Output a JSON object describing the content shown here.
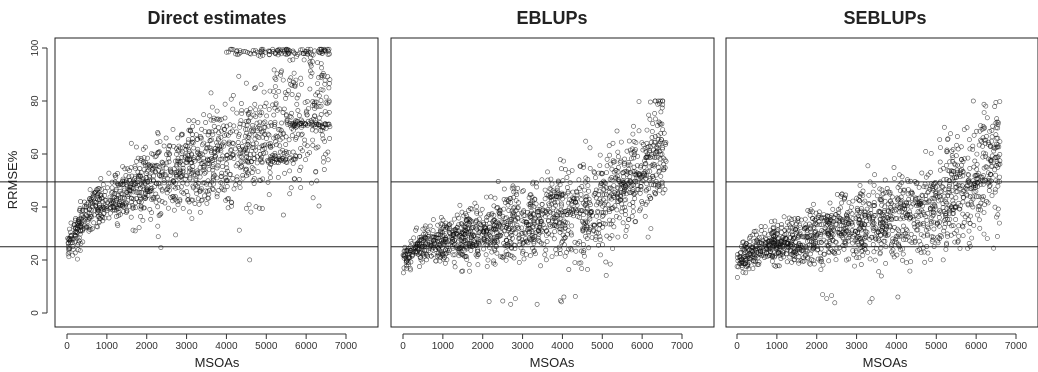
{
  "chart_data": [
    {
      "type": "scatter",
      "title": "Direct estimates",
      "xlabel": "MSOAs",
      "ylabel": "RRMSE%",
      "xlim": [
        0,
        7000
      ],
      "ylim": [
        0,
        100
      ],
      "xticks": [
        "0",
        "1000",
        "2000",
        "3000",
        "4000",
        "5000",
        "6000",
        "7000"
      ],
      "yticks": [
        "0",
        "20",
        "40",
        "60",
        "80",
        "100"
      ],
      "reference_lines": [
        25,
        49.5
      ],
      "n_points": 6600,
      "trend": [
        [
          0,
          25
        ],
        [
          500,
          38
        ],
        [
          1500,
          45
        ],
        [
          3000,
          55
        ],
        [
          4500,
          62
        ],
        [
          5500,
          72
        ],
        [
          6600,
          80
        ]
      ],
      "plateaus": [
        {
          "from": 5000,
          "to": 6000,
          "value": 58
        },
        {
          "from": 5500,
          "to": 6600,
          "value": 71
        },
        {
          "from": 4000,
          "to": 6600,
          "value": 98.5
        }
      ],
      "grid": false
    },
    {
      "type": "scatter",
      "title": "EBLUPs",
      "xlabel": "MSOAs",
      "ylabel": "",
      "xlim": [
        0,
        7000
      ],
      "ylim": [
        0,
        100
      ],
      "xticks": [
        "0",
        "1000",
        "2000",
        "3000",
        "4000",
        "5000",
        "6000",
        "7000"
      ],
      "yticks": [],
      "reference_lines": [
        25,
        49.5
      ],
      "n_points": 6600,
      "trend": [
        [
          0,
          20
        ],
        [
          500,
          26
        ],
        [
          2000,
          30
        ],
        [
          3500,
          35
        ],
        [
          5000,
          42
        ],
        [
          5800,
          52
        ],
        [
          6600,
          62
        ]
      ],
      "plateaus": [
        {
          "from": 5800,
          "to": 6100,
          "value": 52
        },
        {
          "from": 6300,
          "to": 6600,
          "value": 61
        }
      ],
      "grid": false
    },
    {
      "type": "scatter",
      "title": "SEBLUPs",
      "xlabel": "MSOAs",
      "ylabel": "",
      "xlim": [
        0,
        7000
      ],
      "ylim": [
        0,
        100
      ],
      "xticks": [
        "0",
        "1000",
        "2000",
        "3000",
        "4000",
        "5000",
        "6000",
        "7000"
      ],
      "yticks": [],
      "reference_lines": [
        25,
        49.5
      ],
      "n_points": 6600,
      "trend": [
        [
          0,
          19
        ],
        [
          500,
          25
        ],
        [
          2000,
          29
        ],
        [
          3500,
          34
        ],
        [
          5000,
          40
        ],
        [
          5800,
          48
        ],
        [
          6600,
          58
        ]
      ],
      "plateaus": [
        {
          "from": 5800,
          "to": 6100,
          "value": 49
        },
        {
          "from": 6300,
          "to": 6600,
          "value": 58
        }
      ],
      "grid": false
    }
  ]
}
